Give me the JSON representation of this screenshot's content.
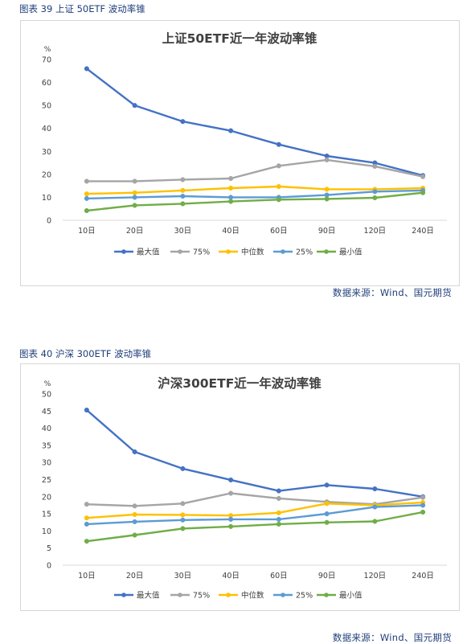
{
  "figures": [
    {
      "caption": "图表 39  上证 50ETF 波动率锥",
      "source": "数据来源：Wind、国元期货"
    },
    {
      "caption": "图表 40  沪深 300ETF 波动率锥",
      "source": "数据来源：Wind、国元期货"
    }
  ],
  "chart_data": [
    {
      "type": "line",
      "title": "上证50ETF近一年波动率锥",
      "ylabel": "%",
      "xlabel": "",
      "ylim": [
        0,
        70
      ],
      "yticks": [
        0,
        10,
        20,
        30,
        40,
        50,
        60,
        70
      ],
      "categories": [
        "10日",
        "20日",
        "30日",
        "40日",
        "60日",
        "90日",
        "120日",
        "240日"
      ],
      "legend_position": "bottom",
      "grid": false,
      "series": [
        {
          "name": "最大值",
          "color": "#4472c4",
          "values": [
            66,
            50,
            43,
            39,
            33,
            28,
            25,
            19.5
          ]
        },
        {
          "name": "75%",
          "color": "#a5a5a5",
          "values": [
            17,
            17,
            17.7,
            18.2,
            23.7,
            26.3,
            23.5,
            19
          ]
        },
        {
          "name": "中位数",
          "color": "#ffc000",
          "values": [
            11.5,
            12,
            13,
            14,
            14.7,
            13.5,
            13.5,
            14
          ]
        },
        {
          "name": "25%",
          "color": "#5b9bd5",
          "values": [
            9.5,
            10,
            10.5,
            10,
            10,
            11,
            12.5,
            13
          ]
        },
        {
          "name": "最小值",
          "color": "#70ad47",
          "values": [
            4.2,
            6.5,
            7.2,
            8.2,
            9,
            9.3,
            9.8,
            12
          ]
        }
      ]
    },
    {
      "type": "line",
      "title": "沪深300ETF近一年波动率锥",
      "ylabel": "%",
      "xlabel": "",
      "ylim": [
        0,
        50
      ],
      "yticks": [
        0,
        5,
        10,
        15,
        20,
        25,
        30,
        35,
        40,
        45,
        50
      ],
      "categories": [
        "10日",
        "20日",
        "30日",
        "40日",
        "60日",
        "90日",
        "120日",
        "240日"
      ],
      "legend_position": "bottom",
      "grid": false,
      "series": [
        {
          "name": "最大值",
          "color": "#4472c4",
          "values": [
            45.3,
            33.1,
            28.2,
            24.9,
            21.7,
            23.4,
            22.3,
            20
          ]
        },
        {
          "name": "75%",
          "color": "#a5a5a5",
          "values": [
            17.8,
            17.3,
            18,
            21,
            19.5,
            18.5,
            17.8,
            19.8
          ]
        },
        {
          "name": "中位数",
          "color": "#ffc000",
          "values": [
            13.8,
            14.8,
            14.7,
            14.5,
            15.3,
            18,
            17.5,
            18.3
          ]
        },
        {
          "name": "25%",
          "color": "#5b9bd5",
          "values": [
            12,
            12.7,
            13.2,
            13.4,
            13.4,
            15,
            17,
            17.5
          ]
        },
        {
          "name": "最小值",
          "color": "#70ad47",
          "values": [
            7,
            8.8,
            10.7,
            11.3,
            12,
            12.5,
            12.8,
            15.5
          ]
        }
      ]
    }
  ]
}
